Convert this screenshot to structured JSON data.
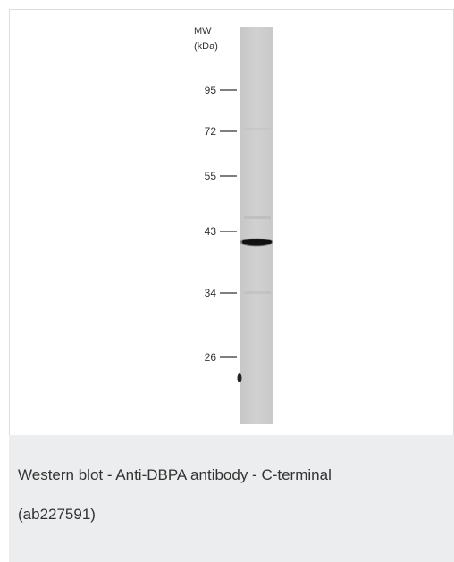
{
  "figure": {
    "mw_label": "MW",
    "unit_label": "(kDa)",
    "markers": [
      "95",
      "72",
      "55",
      "43",
      "34",
      "26"
    ]
  },
  "caption": {
    "line1": "Western blot - Anti-DBPA antibody - C-terminal",
    "line2": "(ab227591)"
  }
}
